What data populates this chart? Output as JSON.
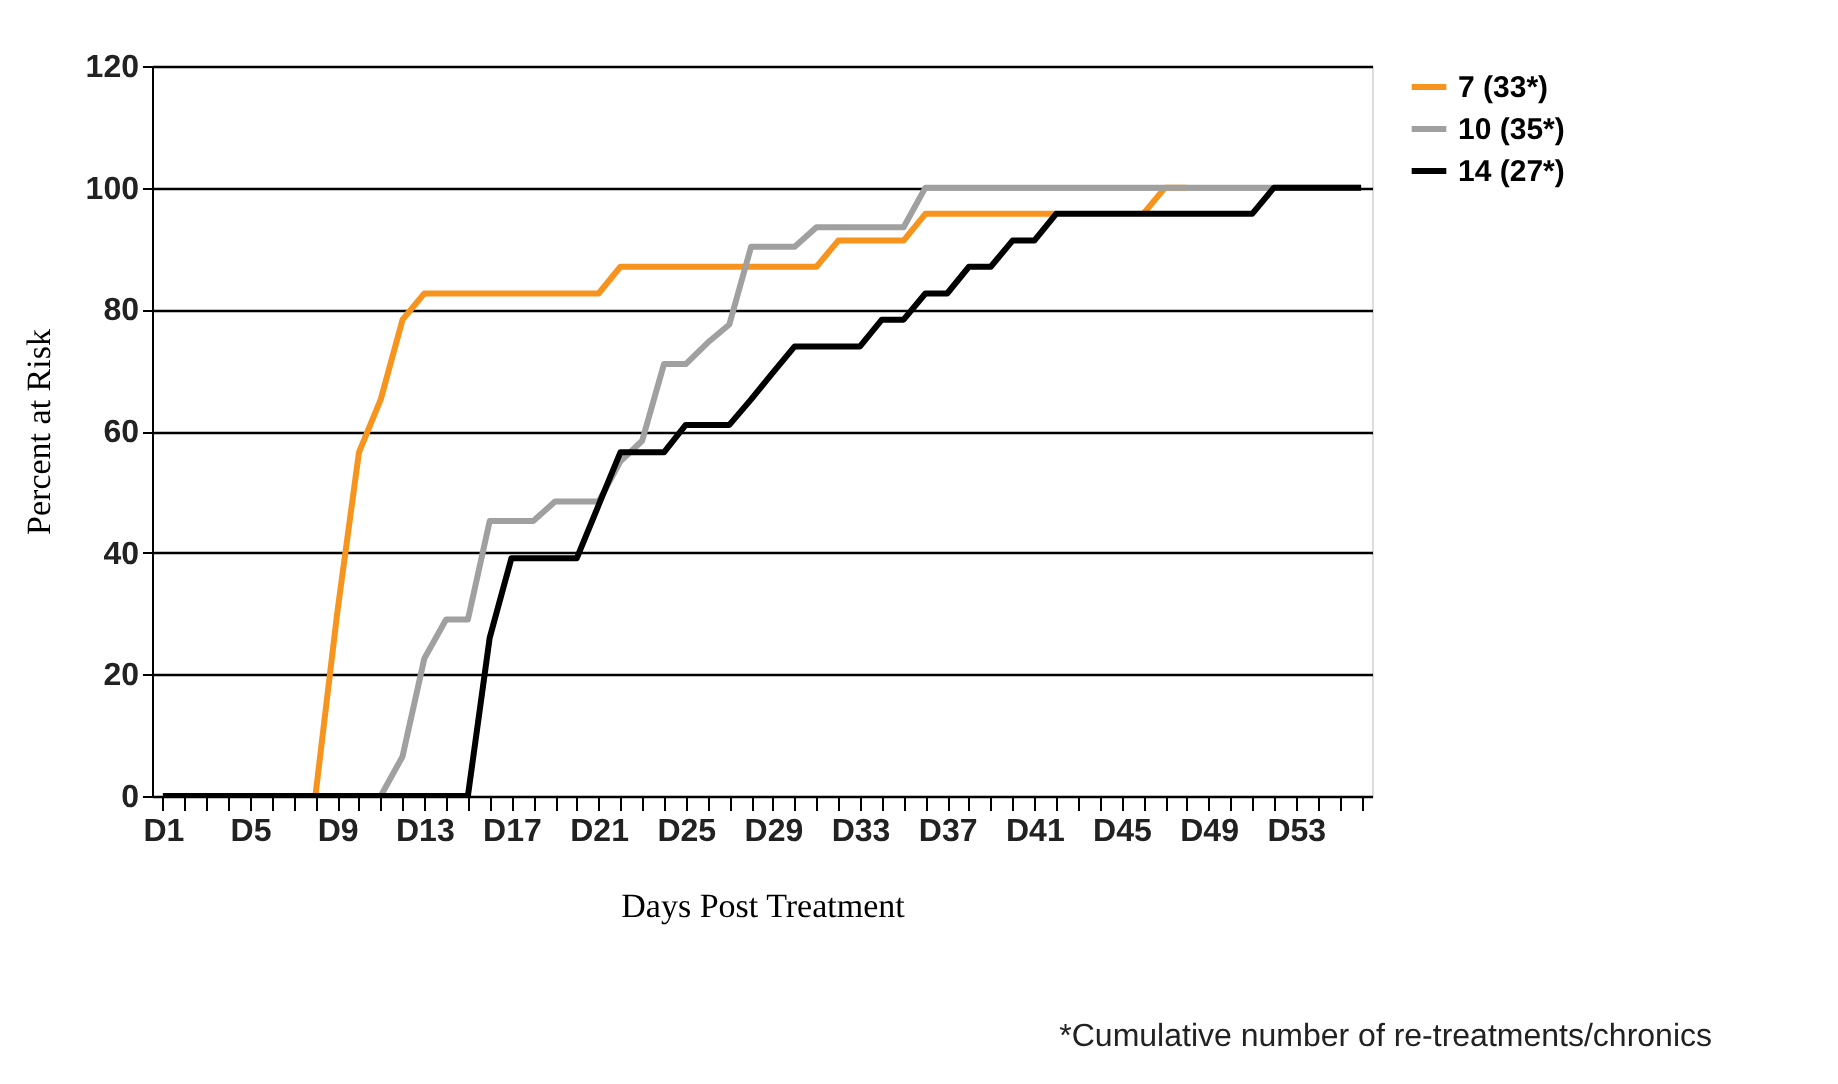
{
  "chart_data": {
    "type": "line",
    "xlabel": "Days Post Treatment",
    "ylabel": "Percent at Risk",
    "categories": [
      "D1",
      null,
      null,
      null,
      "D5",
      null,
      null,
      null,
      "D9",
      null,
      null,
      null,
      "D13",
      null,
      null,
      null,
      "D17",
      null,
      null,
      null,
      "D21",
      null,
      null,
      null,
      "D25",
      null,
      null,
      null,
      "D29",
      null,
      null,
      null,
      "D33",
      null,
      null,
      null,
      "D37",
      null,
      null,
      null,
      "D41",
      null,
      null,
      null,
      "D45",
      null,
      null,
      null,
      "D49",
      null,
      null,
      null,
      "D53",
      null,
      null,
      null
    ],
    "series": [
      {
        "name": "7   (33*)",
        "color": "#f7941d",
        "values": [
          null,
          null,
          null,
          null,
          null,
          null,
          0,
          0,
          30,
          56.5,
          65.2,
          78.3,
          82.6,
          82.6,
          82.6,
          82.6,
          82.6,
          82.6,
          82.6,
          82.6,
          82.6,
          87,
          87,
          87,
          87,
          87,
          87,
          87,
          87,
          87,
          87,
          91.3,
          91.3,
          91.3,
          91.3,
          95.7,
          95.7,
          95.7,
          95.7,
          95.7,
          95.7,
          95.7,
          null,
          null,
          null,
          95.7,
          100,
          100,
          null,
          null,
          null,
          null,
          null,
          null,
          null,
          null
        ]
      },
      {
        "name": "10 (35*)",
        "color": "#a0a0a0",
        "values": [
          0,
          0,
          0,
          0,
          0,
          0,
          0,
          0,
          0,
          0,
          0,
          6.5,
          22.6,
          29,
          29,
          45.2,
          45.2,
          45.2,
          48.4,
          48.4,
          48.4,
          55,
          58.4,
          71,
          71,
          74.5,
          77.5,
          90.3,
          90.3,
          90.3,
          93.5,
          93.5,
          93.5,
          93.5,
          93.5,
          100,
          100,
          100,
          100,
          100,
          100,
          100,
          100,
          100,
          100,
          100,
          100,
          100,
          100,
          100,
          100,
          100,
          100,
          100,
          100,
          100
        ]
      },
      {
        "name": "14 (27*)",
        "color": "#000000",
        "values": [
          0,
          0,
          0,
          0,
          0,
          0,
          0,
          0,
          0,
          0,
          0,
          0,
          0,
          0,
          0,
          26,
          39.1,
          39.1,
          39.1,
          39.1,
          47.8,
          56.5,
          56.5,
          56.5,
          61,
          61,
          61,
          65.2,
          69.6,
          73.9,
          73.9,
          73.9,
          73.9,
          78.3,
          78.3,
          82.6,
          82.6,
          87,
          87,
          91.3,
          91.3,
          95.7,
          95.7,
          95.7,
          95.7,
          95.7,
          95.7,
          95.7,
          95.7,
          95.7,
          95.7,
          100,
          100,
          100,
          100,
          100
        ]
      }
    ],
    "ylim": [
      0,
      120
    ],
    "yticks": [
      0,
      20,
      40,
      60,
      80,
      100,
      120
    ],
    "grid": "y",
    "legend": "right",
    "marker": "none",
    "line_style": "solid",
    "annotations": [
      "*Cumulative number of re-treatments/chronics"
    ]
  }
}
